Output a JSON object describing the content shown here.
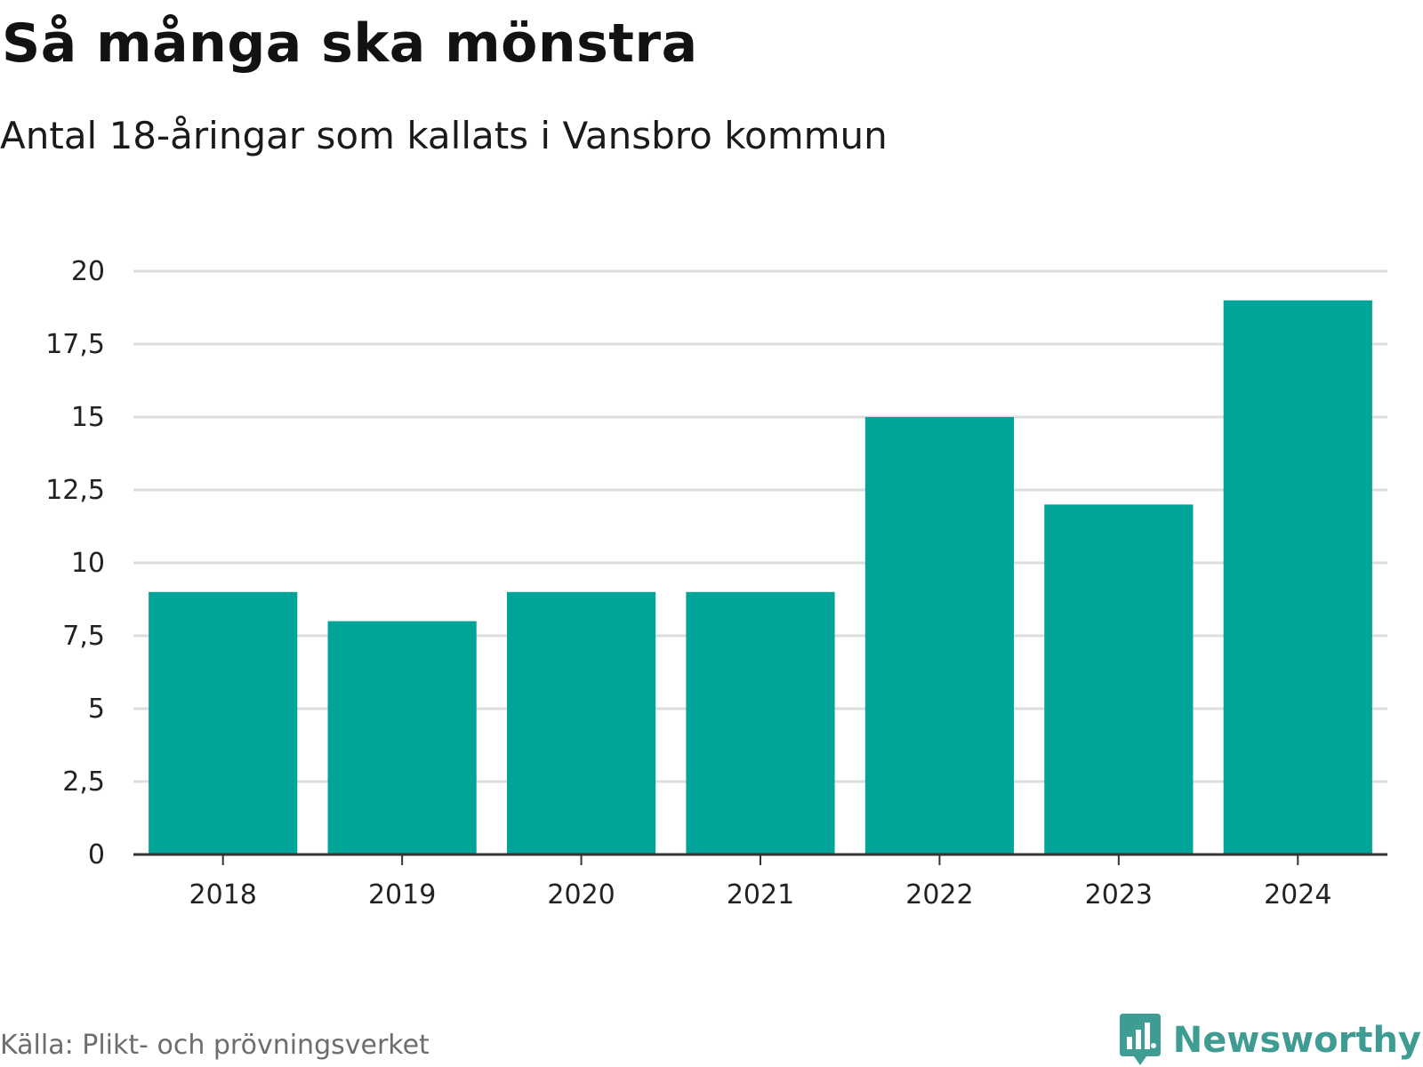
{
  "chart_data": {
    "type": "bar",
    "title": "Så många ska mönstra",
    "subtitle": "Antal 18-åringar som kallats i Vansbro kommun",
    "categories": [
      "2018",
      "2019",
      "2020",
      "2021",
      "2022",
      "2023",
      "2024"
    ],
    "values": [
      9,
      8,
      9,
      9,
      15,
      12,
      19
    ],
    "ylim": [
      0,
      20
    ],
    "yticks": [
      0,
      2.5,
      5,
      7.5,
      10,
      12.5,
      15,
      17.5,
      20
    ],
    "ytick_labels": [
      "0",
      "2,5",
      "5",
      "7,5",
      "10",
      "12,5",
      "15",
      "17,5",
      "20"
    ],
    "xlabel": "",
    "ylabel": "",
    "grid": true,
    "bar_color": "#00a499",
    "source": "Källa: Plikt- och prövningsverket"
  },
  "brand": {
    "name": "Newsworthy",
    "icon": "newsworthy-logo-icon",
    "color": "#3f9c93"
  }
}
